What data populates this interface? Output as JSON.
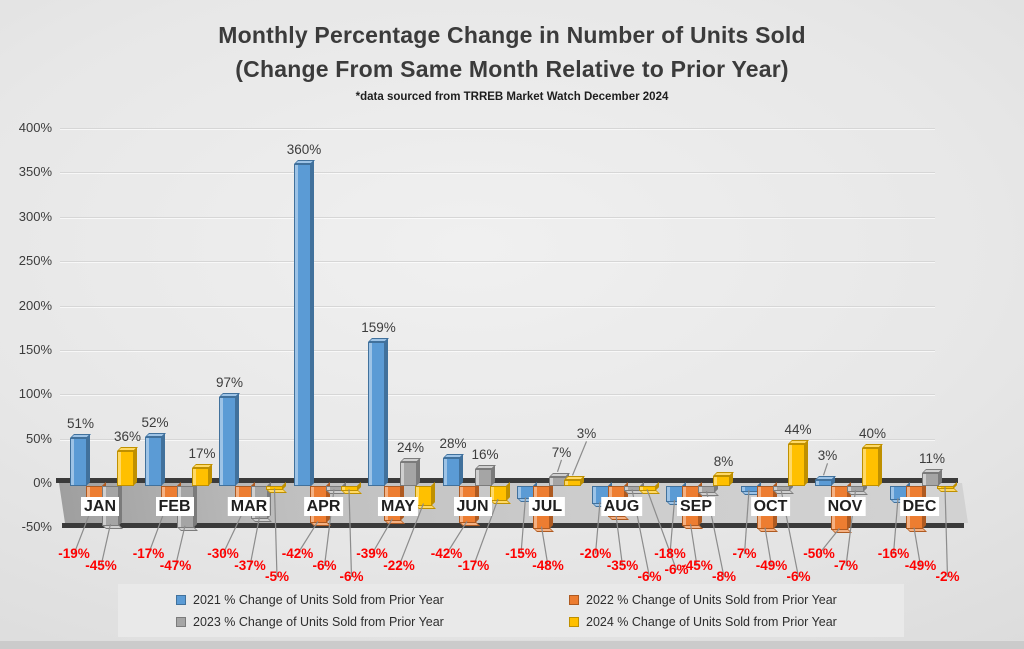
{
  "header": {
    "title_line1": "Monthly Percentage Change in Number of Units Sold",
    "title_line2": "(Change From Same Month Relative to Prior Year)",
    "source_note": "*data sourced from TRREB Market Watch December 2024"
  },
  "chart_data": {
    "type": "bar",
    "title": "Monthly Percentage Change in Number of Units Sold (Change From Same Month Relative to Prior Year)",
    "subtitle": "*data sourced from TRREB Market Watch December 2024",
    "categories": [
      "JAN",
      "FEB",
      "MAR",
      "APR",
      "MAY",
      "JUN",
      "JUL",
      "AUG",
      "SEP",
      "OCT",
      "NOV",
      "DEC"
    ],
    "series": [
      {
        "name": "2021 % Change of Units Sold from Prior Year",
        "color": "#5B9BD5",
        "color_light": "#9DC3E6",
        "color_dark": "#41719C",
        "values": [
          51,
          52,
          97,
          360,
          159,
          28,
          -15,
          -20,
          -18,
          -7,
          3,
          -16
        ]
      },
      {
        "name": "2022 % Change of Units Sold from Prior Year",
        "color": "#ED7D31",
        "color_light": "#F4B183",
        "color_dark": "#AE5A21",
        "values": [
          -19,
          -17,
          -30,
          -42,
          -39,
          -42,
          -48,
          -35,
          -45,
          -49,
          -50,
          -49
        ]
      },
      {
        "name": "2023 % Change of Units Sold from Prior Year",
        "color": "#A5A5A5",
        "color_light": "#CFCFCF",
        "color_dark": "#7B7B7B",
        "values": [
          -45,
          -47,
          -37,
          -6,
          24,
          16,
          7,
          -6,
          -8,
          -6,
          -7,
          11
        ]
      },
      {
        "name": "2024 % Change of Units Sold from Prior Year",
        "color": "#FFC000",
        "color_light": "#FFD966",
        "color_dark": "#BF9000",
        "values": [
          36,
          17,
          -5,
          -6,
          -22,
          -17,
          3,
          -6,
          8,
          44,
          40,
          -2
        ]
      }
    ],
    "yticks": [
      "400%",
      "350%",
      "300%",
      "250%",
      "200%",
      "150%",
      "100%",
      "50%",
      "0%",
      "-50%"
    ],
    "ylim": [
      -50,
      400
    ],
    "grid": true,
    "legend_position": "bottom",
    "value_suffix": "%",
    "style_colors": {
      "positive_label": "#3C3C3C",
      "negative_label": "#FF0000",
      "axis_line": "#3A3A3A",
      "month_label_bg": "#FFFFFF",
      "leader_line": "#8C8C8C"
    }
  }
}
